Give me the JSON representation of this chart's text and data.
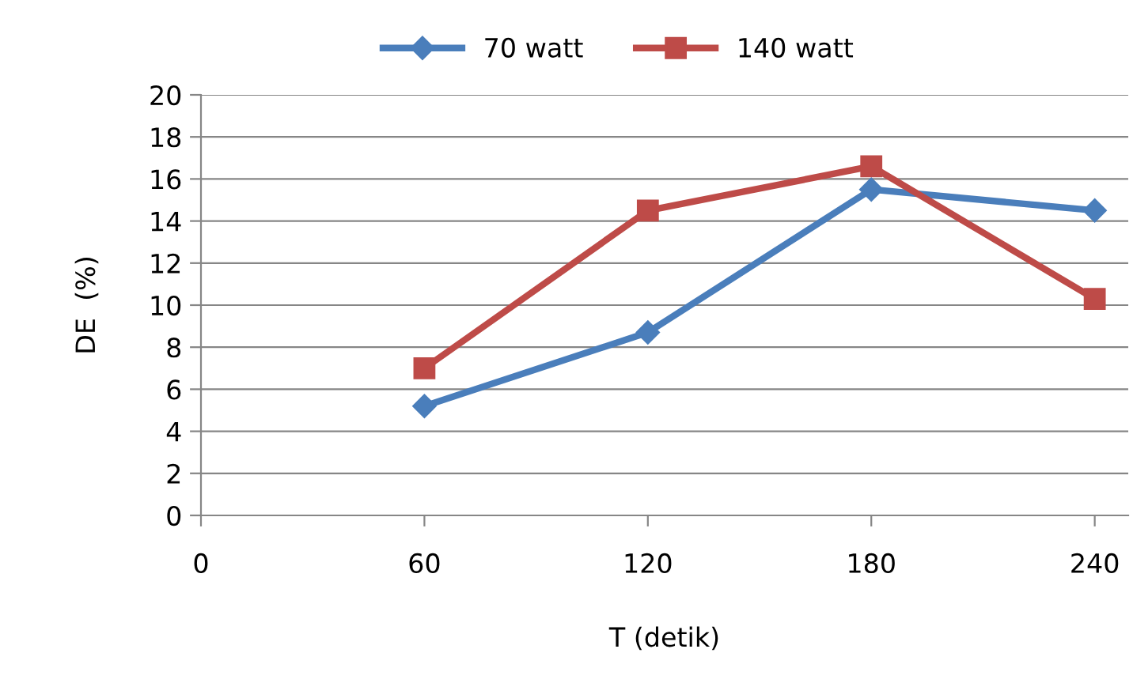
{
  "chart_data": {
    "type": "line",
    "xlabel": "T (detik)",
    "ylabel": "DE  (%)",
    "x": [
      60,
      120,
      180,
      240
    ],
    "series": [
      {
        "name": "70 watt",
        "color": "#4a7ebb",
        "values": [
          5.2,
          8.7,
          15.5,
          14.5
        ],
        "marker": "diamond"
      },
      {
        "name": "140 watt",
        "color": "#be4b48",
        "values": [
          7.0,
          14.5,
          16.6,
          10.3
        ],
        "marker": "square"
      }
    ],
    "xlim": [
      0,
      249
    ],
    "xticks": [
      0,
      60,
      120,
      180,
      240
    ],
    "ylim": [
      0,
      20
    ],
    "yticks": [
      0,
      2,
      4,
      6,
      8,
      10,
      12,
      14,
      16,
      18,
      20
    ],
    "grid": "y",
    "legend": "top",
    "line_style": "solid"
  }
}
